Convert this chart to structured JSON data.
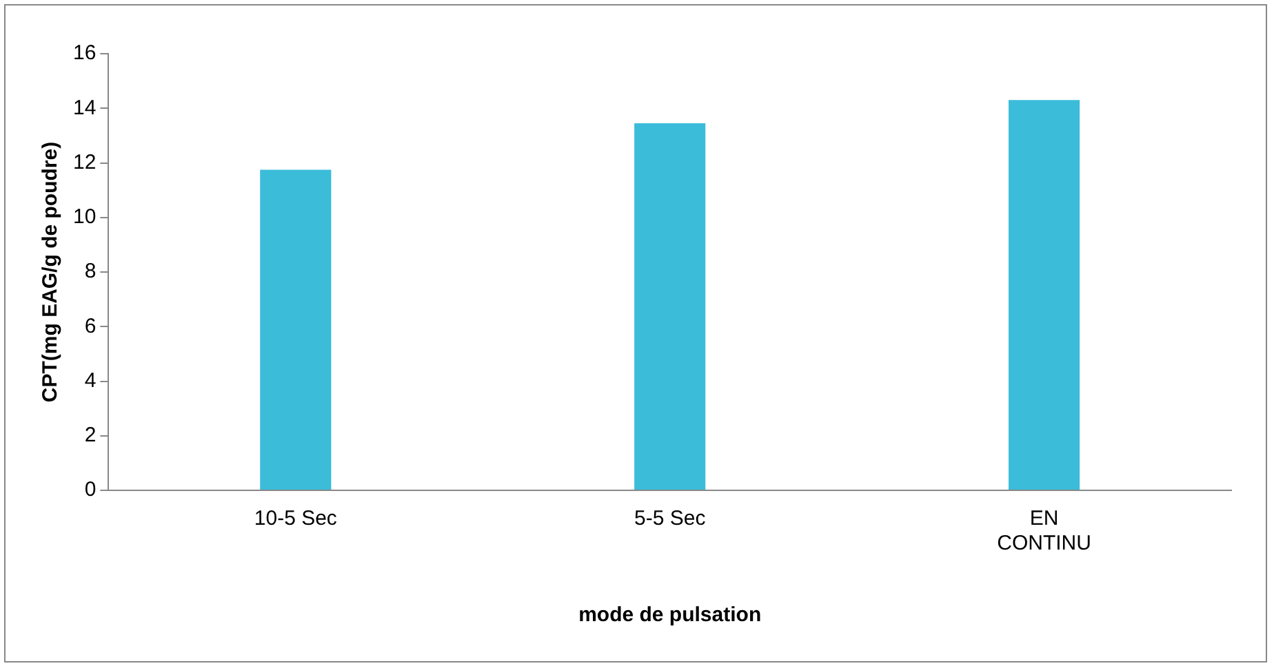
{
  "chart_data": {
    "type": "bar",
    "xlabel": "mode de pulsation",
    "ylabel": "CPT(mg EAG/g de poudre)",
    "categories": [
      "10-5 Sec",
      "5-5 Sec",
      "EN CONTINU"
    ],
    "values": [
      11.75,
      13.45,
      14.3
    ],
    "color": "#3bbcd9",
    "ylim": [
      0,
      16
    ],
    "yticks": [
      0,
      2,
      4,
      6,
      8,
      10,
      12,
      14,
      16
    ],
    "grid": false,
    "legend": false
  }
}
